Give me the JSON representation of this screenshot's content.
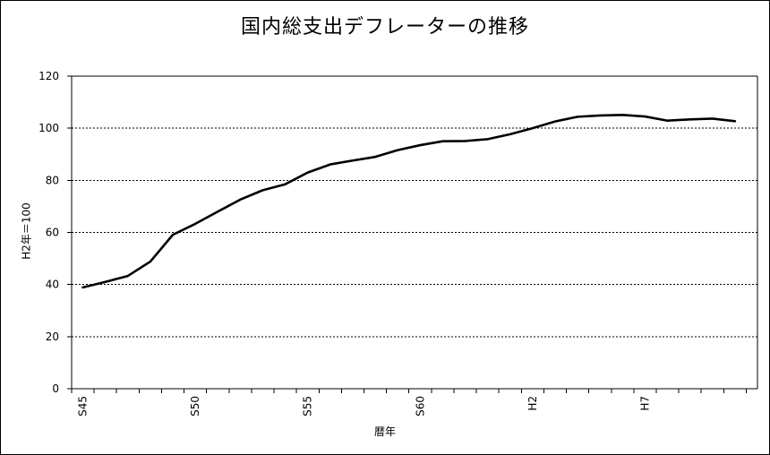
{
  "chart_data": {
    "type": "line",
    "title": "国内総支出デフレーターの推移",
    "xlabel": "暦年",
    "ylabel": "H2年＝100",
    "ylim": [
      0,
      120
    ],
    "yticks": [
      0,
      20,
      40,
      60,
      80,
      100,
      120
    ],
    "grid": "horizontal dashed",
    "legend": "none",
    "x_tick_labels": [
      {
        "year": 1970,
        "label": "S45"
      },
      {
        "year": 1975,
        "label": "S50"
      },
      {
        "year": 1980,
        "label": "S55"
      },
      {
        "year": 1985,
        "label": "S60"
      },
      {
        "year": 1990,
        "label": "H2"
      },
      {
        "year": 1995,
        "label": "H7"
      }
    ],
    "series": [
      {
        "color": "#000000",
        "x": [
          1970,
          1971,
          1972,
          1973,
          1974,
          1975,
          1976,
          1977,
          1978,
          1979,
          1980,
          1981,
          1982,
          1983,
          1984,
          1985,
          1986,
          1987,
          1988,
          1989,
          1990,
          1991,
          1992,
          1993,
          1994,
          1995,
          1996,
          1997,
          1998,
          1999
        ],
        "values": [
          38.9,
          41.0,
          43.3,
          48.8,
          59.1,
          63.3,
          68.0,
          72.6,
          76.2,
          78.5,
          83.0,
          86.1,
          87.6,
          89.0,
          91.6,
          93.5,
          95.0,
          95.1,
          95.8,
          97.7,
          100.0,
          102.6,
          104.4,
          104.9,
          105.1,
          104.5,
          102.9,
          103.4,
          103.7,
          102.7
        ]
      }
    ]
  }
}
